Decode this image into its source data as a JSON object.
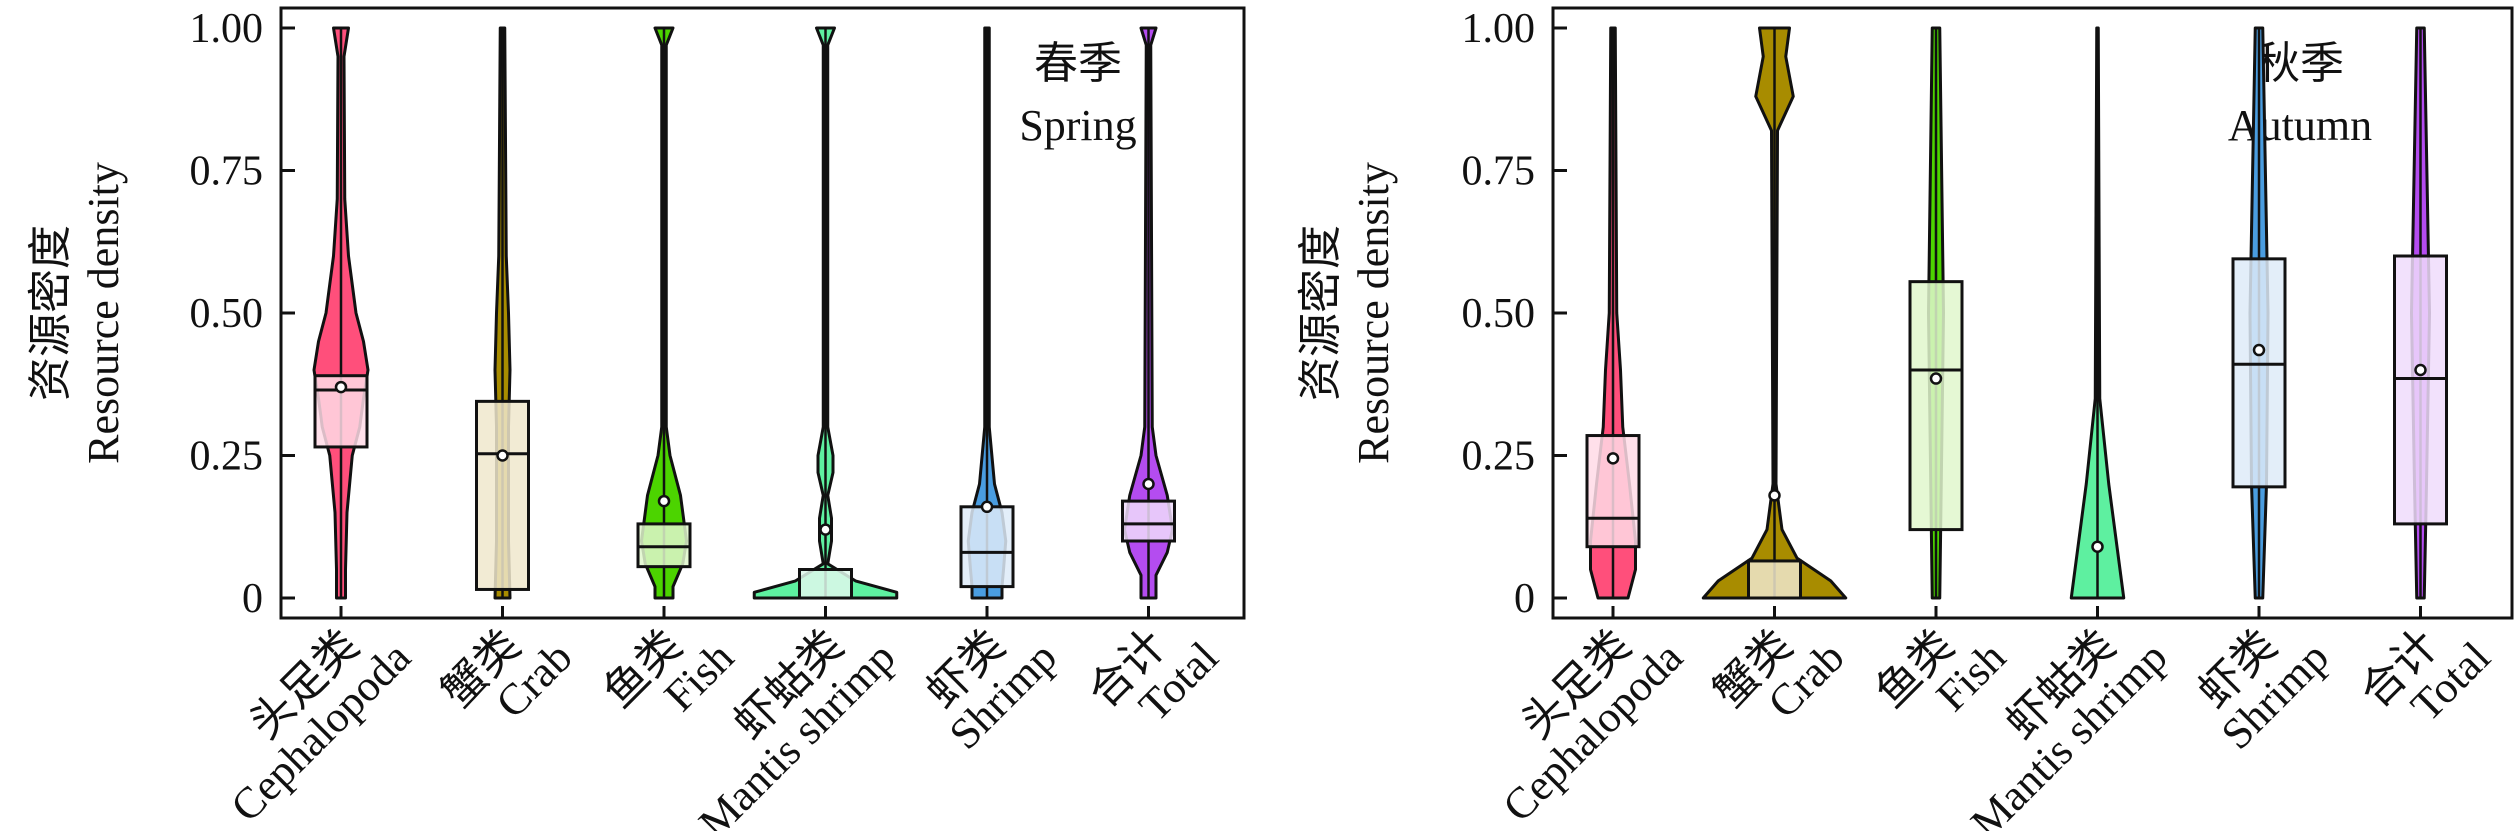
{
  "chart_data": [
    {
      "type": "violin",
      "season_cn": "春季",
      "season_en": "Spring",
      "ylabel_cn": "资源密度",
      "ylabel_en": "Resource density",
      "ylim": [
        0,
        1
      ],
      "yticks": [
        "0",
        "0.25",
        "0.50",
        "0.75",
        "1.00"
      ],
      "ytick_values": [
        0,
        0.25,
        0.5,
        0.75,
        1.0
      ],
      "categories": [
        {
          "cn": "头足类",
          "en": "Cephalopoda",
          "color": "#ff4f7b",
          "box_fill": "#ffdbe6",
          "q1": 0.265,
          "median": 0.365,
          "q3": 0.39,
          "mean": 0.37,
          "density": [
            [
              1,
              0.1
            ],
            [
              0.95,
              0.04
            ],
            [
              0.7,
              0.05
            ],
            [
              0.6,
              0.1
            ],
            [
              0.5,
              0.2
            ],
            [
              0.45,
              0.3
            ],
            [
              0.4,
              0.36
            ],
            [
              0.35,
              0.3
            ],
            [
              0.3,
              0.25
            ],
            [
              0.25,
              0.15
            ],
            [
              0.15,
              0.08
            ],
            [
              0.05,
              0.06
            ],
            [
              0,
              0.06
            ]
          ]
        },
        {
          "cn": "蟹类",
          "en": "Crab",
          "color": "#a88c00",
          "box_fill": "#f0e8cc",
          "q1": 0.015,
          "median": 0.253,
          "q3": 0.345,
          "mean": 0.25,
          "density": [
            [
              1,
              0.03
            ],
            [
              0.6,
              0.05
            ],
            [
              0.5,
              0.08
            ],
            [
              0.4,
              0.1
            ],
            [
              0.3,
              0.08
            ],
            [
              0.1,
              0.08
            ],
            [
              0,
              0.1
            ]
          ]
        },
        {
          "cn": "鱼类",
          "en": "Fish",
          "color": "#4cd400",
          "box_fill": "#e0f7cc",
          "q1": 0.055,
          "median": 0.09,
          "q3": 0.13,
          "mean": 0.17,
          "density": [
            [
              1,
              0.12
            ],
            [
              0.97,
              0.03
            ],
            [
              0.3,
              0.03
            ],
            [
              0.25,
              0.08
            ],
            [
              0.18,
              0.22
            ],
            [
              0.1,
              0.3
            ],
            [
              0.06,
              0.25
            ],
            [
              0.02,
              0.12
            ],
            [
              0,
              0.12
            ]
          ]
        },
        {
          "cn": "虾蛄类",
          "en": "Mantis shrimp",
          "color": "#5ef0a0",
          "box_fill": "#dff9ec",
          "q1": 0.0,
          "median": 0.0,
          "q3": 0.05,
          "mean": 0.12,
          "density": [
            [
              1,
              0.12
            ],
            [
              0.97,
              0.03
            ],
            [
              0.3,
              0.03
            ],
            [
              0.25,
              0.1
            ],
            [
              0.22,
              0.1
            ],
            [
              0.18,
              0.03
            ],
            [
              0.14,
              0.08
            ],
            [
              0.1,
              0.08
            ],
            [
              0.06,
              0.03
            ],
            [
              0.03,
              0.4
            ],
            [
              0.01,
              0.95
            ],
            [
              0,
              0.95
            ]
          ]
        },
        {
          "cn": "虾类",
          "en": "Shrimp",
          "color": "#4a9de0",
          "box_fill": "#deebf8",
          "q1": 0.02,
          "median": 0.08,
          "q3": 0.16,
          "mean": 0.16,
          "density": [
            [
              1,
              0.03
            ],
            [
              0.3,
              0.03
            ],
            [
              0.2,
              0.1
            ],
            [
              0.15,
              0.2
            ],
            [
              0.1,
              0.25
            ],
            [
              0.05,
              0.22
            ],
            [
              0.02,
              0.2
            ],
            [
              0,
              0.2
            ]
          ]
        },
        {
          "cn": "合计",
          "en": "Total",
          "color": "#b44cf0",
          "box_fill": "#f0dcfb",
          "q1": 0.1,
          "median": 0.13,
          "q3": 0.17,
          "mean": 0.2,
          "density": [
            [
              1,
              0.1
            ],
            [
              0.97,
              0.03
            ],
            [
              0.3,
              0.05
            ],
            [
              0.25,
              0.1
            ],
            [
              0.18,
              0.25
            ],
            [
              0.12,
              0.32
            ],
            [
              0.08,
              0.25
            ],
            [
              0.04,
              0.1
            ],
            [
              0,
              0.1
            ]
          ]
        }
      ]
    },
    {
      "type": "violin",
      "season_cn": "秋季",
      "season_en": "Autumn",
      "ylabel_cn": "资源密度",
      "ylabel_en": "Resource density",
      "ylim": [
        0,
        1
      ],
      "yticks": [
        "0",
        "0.25",
        "0.50",
        "0.75",
        "1.00"
      ],
      "ytick_values": [
        0,
        0.25,
        0.5,
        0.75,
        1.0
      ],
      "categories": [
        {
          "cn": "头足类",
          "en": "Cephalopoda",
          "color": "#ff4f7b",
          "box_fill": "#ffdbe6",
          "q1": 0.09,
          "median": 0.14,
          "q3": 0.285,
          "mean": 0.245,
          "density": [
            [
              1,
              0.03
            ],
            [
              0.5,
              0.05
            ],
            [
              0.4,
              0.1
            ],
            [
              0.3,
              0.13
            ],
            [
              0.2,
              0.22
            ],
            [
              0.1,
              0.3
            ],
            [
              0.05,
              0.3
            ],
            [
              0,
              0.2
            ]
          ]
        },
        {
          "cn": "蟹类",
          "en": "Crab",
          "color": "#a88c00",
          "box_fill": "#f0e8cc",
          "q1": 0.0,
          "median": 0.0,
          "q3": 0.065,
          "mean": 0.18,
          "density": [
            [
              1,
              0.2
            ],
            [
              0.95,
              0.15
            ],
            [
              0.88,
              0.25
            ],
            [
              0.82,
              0.04
            ],
            [
              0.2,
              0.02
            ],
            [
              0.12,
              0.1
            ],
            [
              0.07,
              0.3
            ],
            [
              0.03,
              0.75
            ],
            [
              0,
              0.95
            ]
          ]
        },
        {
          "cn": "鱼类",
          "en": "Fish",
          "color": "#4cd400",
          "box_fill": "#e0f7cc",
          "q1": 0.12,
          "median": 0.4,
          "q3": 0.555,
          "mean": 0.385,
          "density": [
            [
              1,
              0.05
            ],
            [
              0.5,
              0.1
            ],
            [
              0,
              0.05
            ]
          ]
        },
        {
          "cn": "虾蛄类",
          "en": "Mantis shrimp",
          "color": "#5ef0a0",
          "box_fill": "#dff9ec",
          "q1": null,
          "median": null,
          "q3": null,
          "mean": 0.09,
          "density": [
            [
              1,
              0.01
            ],
            [
              0.35,
              0.03
            ],
            [
              0.2,
              0.15
            ],
            [
              0.05,
              0.3
            ],
            [
              0,
              0.35
            ]
          ]
        },
        {
          "cn": "虾类",
          "en": "Shrimp",
          "color": "#4a9de0",
          "box_fill": "#deebf8",
          "q1": 0.195,
          "median": 0.41,
          "q3": 0.595,
          "mean": 0.435,
          "density": [
            [
              1,
              0.05
            ],
            [
              0.5,
              0.12
            ],
            [
              0.2,
              0.1
            ],
            [
              0,
              0.05
            ]
          ]
        },
        {
          "cn": "合计",
          "en": "Total",
          "color": "#b44cf0",
          "box_fill": "#f0dcfb",
          "q1": 0.13,
          "median": 0.385,
          "q3": 0.6,
          "mean": 0.4,
          "density": [
            [
              1,
              0.05
            ],
            [
              0.5,
              0.12
            ],
            [
              0.2,
              0.08
            ],
            [
              0,
              0.05
            ]
          ]
        }
      ]
    }
  ]
}
